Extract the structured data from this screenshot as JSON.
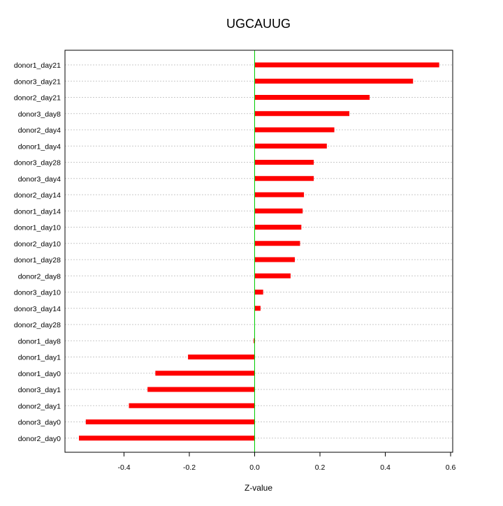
{
  "chart_data": {
    "type": "bar",
    "orientation": "horizontal",
    "title": "UGCAUUG",
    "xlabel": "Z-value",
    "ylabel": "",
    "xlim": [
      -0.58,
      0.6
    ],
    "xticks": [
      -0.4,
      -0.2,
      0.0,
      0.2,
      0.4,
      0.6
    ],
    "xtick_labels": [
      "-0.4",
      "-0.2",
      "0.0",
      "0.2",
      "0.4",
      "0.6"
    ],
    "grid": "horizontal dotted lines at each category",
    "reference_line": {
      "x": 0,
      "color": "#00cc00"
    },
    "bar_color": "#ff0000",
    "categories": [
      "donor1_day21",
      "donor3_day21",
      "donor2_day21",
      "donor3_day8",
      "donor2_day4",
      "donor1_day4",
      "donor3_day28",
      "donor3_day4",
      "donor2_day14",
      "donor1_day14",
      "donor1_day10",
      "donor2_day10",
      "donor1_day28",
      "donor2_day8",
      "donor3_day10",
      "donor3_day14",
      "donor2_day28",
      "donor1_day8",
      "donor1_day1",
      "donor1_day0",
      "donor3_day1",
      "donor2_day1",
      "donor3_day0",
      "donor2_day0"
    ],
    "values": [
      0.565,
      0.485,
      0.352,
      0.29,
      0.244,
      0.221,
      0.181,
      0.181,
      0.151,
      0.147,
      0.143,
      0.139,
      0.123,
      0.11,
      0.026,
      0.018,
      0.0,
      -0.003,
      -0.204,
      -0.304,
      -0.328,
      -0.385,
      -0.517,
      -0.538
    ]
  }
}
